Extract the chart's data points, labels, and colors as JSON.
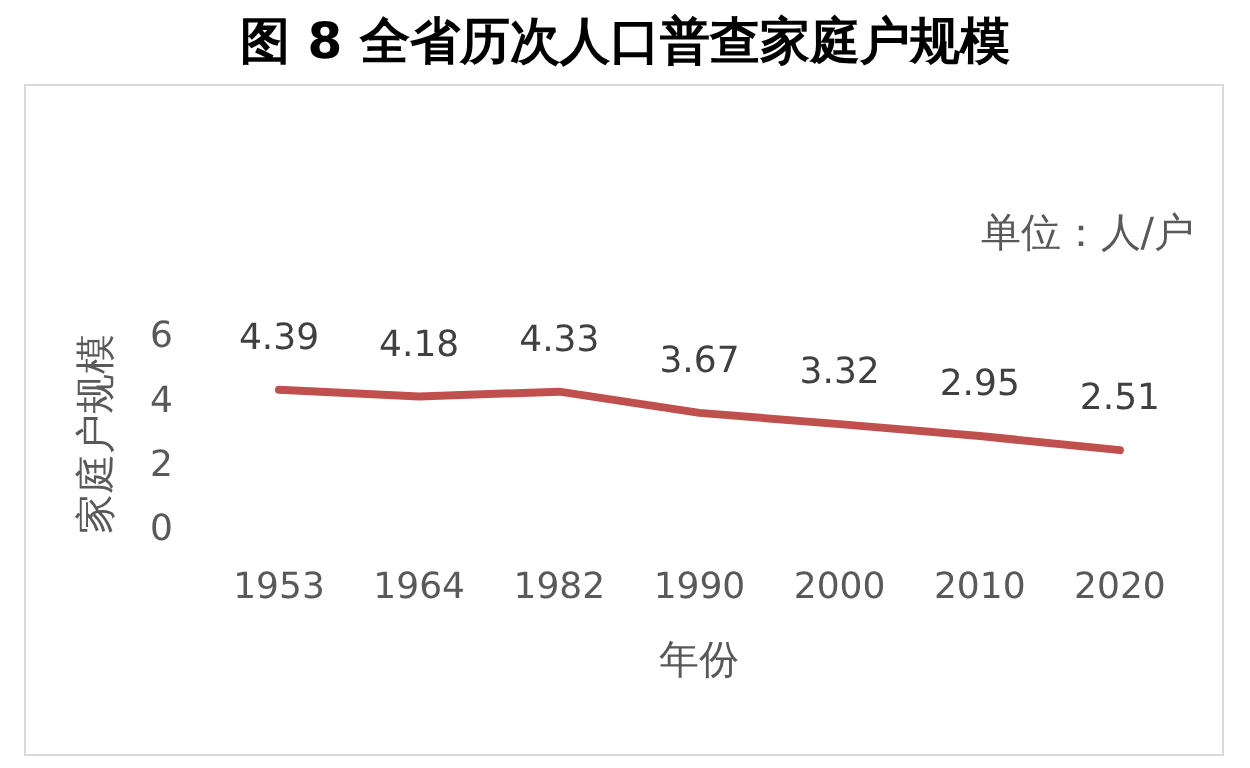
{
  "chart_data": {
    "type": "line",
    "title": "图 8  全省历次人口普查家庭户规模",
    "xlabel": "年份",
    "ylabel": "家庭户规模",
    "annotations": [
      "单位：人/户"
    ],
    "categories": [
      "1953",
      "1964",
      "1982",
      "1990",
      "2000",
      "2010",
      "2020"
    ],
    "series": [
      {
        "color": "#c0504d",
        "values": [
          4.39,
          4.18,
          4.33,
          3.67,
          3.32,
          2.95,
          2.51
        ]
      }
    ],
    "ylim": [
      0,
      6
    ],
    "yticks": [
      0,
      2,
      4,
      6
    ],
    "grid": false,
    "legend": false,
    "data_labels": true,
    "marker": "none",
    "line_style": "solid"
  }
}
